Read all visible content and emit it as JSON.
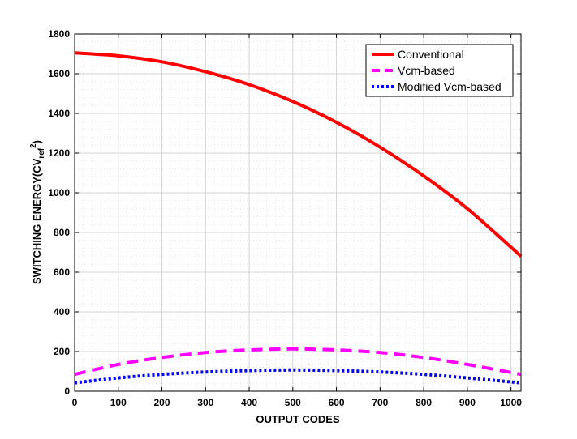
{
  "chart_data": {
    "type": "line",
    "xlabel": "OUTPUT CODES",
    "ylabel_main": "SWITCHING ENERGY(CV",
    "ylabel_sub": "ref",
    "ylabel_sup": "2",
    "ylabel_end": ")",
    "xlim": [
      0,
      1023
    ],
    "ylim": [
      0,
      1800
    ],
    "xticks": [
      0,
      100,
      200,
      300,
      400,
      500,
      600,
      700,
      800,
      900,
      1000
    ],
    "yticks": [
      0,
      200,
      400,
      600,
      800,
      1000,
      1200,
      1400,
      1600,
      1800
    ],
    "grid": true,
    "legend_position": "top-right",
    "series": [
      {
        "name": "Conventional",
        "color": "#ff0000",
        "style": "solid",
        "x": [
          0,
          100,
          200,
          300,
          400,
          500,
          600,
          700,
          800,
          900,
          1023
        ],
        "y": [
          1705,
          1690,
          1660,
          1610,
          1545,
          1460,
          1355,
          1230,
          1085,
          920,
          680
        ]
      },
      {
        "name": "Vcm-based",
        "color": "#ff00ff",
        "style": "dashed",
        "x": [
          0,
          100,
          200,
          300,
          400,
          500,
          600,
          700,
          800,
          900,
          1023
        ],
        "y": [
          85,
          135,
          170,
          195,
          208,
          213,
          208,
          195,
          170,
          135,
          85
        ]
      },
      {
        "name": "Modified Vcm-based",
        "color": "#0000ff",
        "style": "dotted",
        "x": [
          0,
          100,
          200,
          300,
          400,
          500,
          600,
          700,
          800,
          900,
          1023
        ],
        "y": [
          42,
          67,
          85,
          97,
          104,
          107,
          104,
          97,
          85,
          67,
          42
        ]
      }
    ]
  }
}
